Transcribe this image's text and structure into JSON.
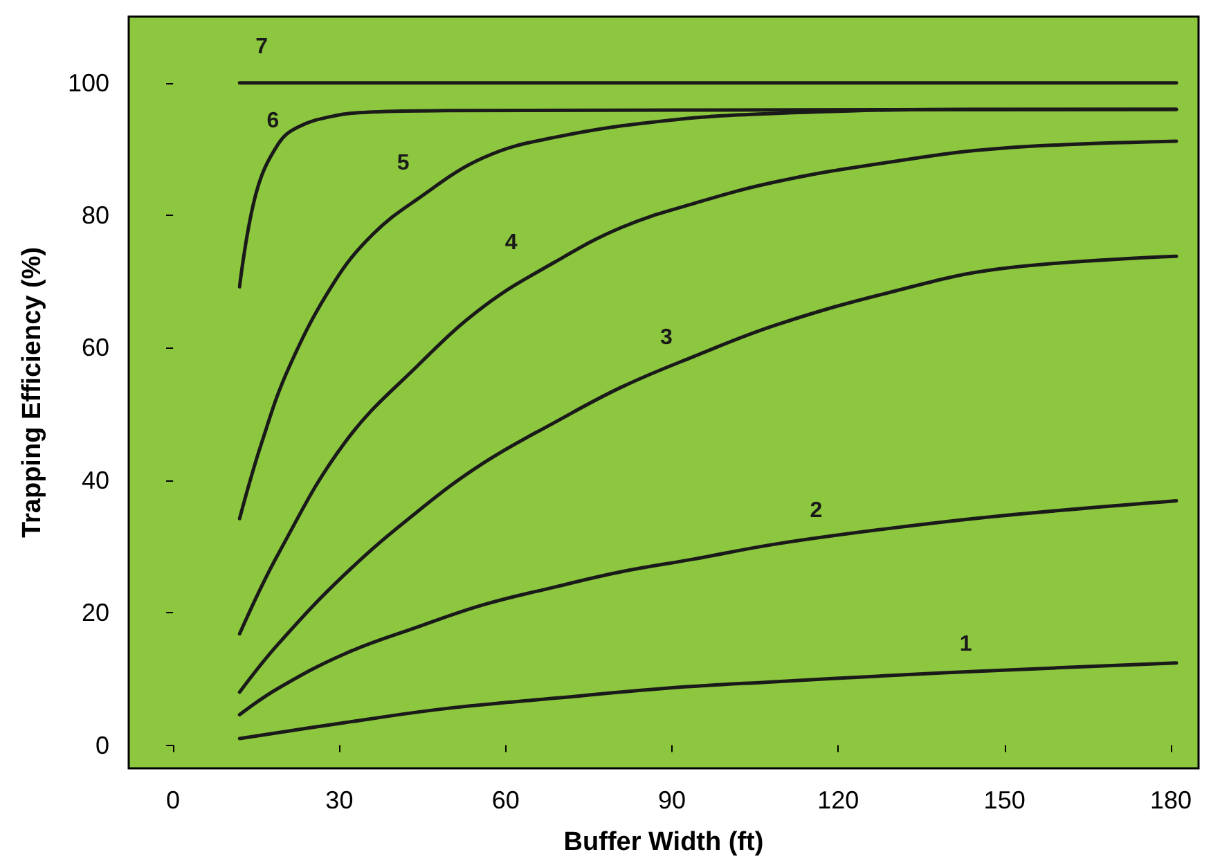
{
  "chart_data": {
    "type": "line",
    "xlabel": "Buffer Width (ft)",
    "ylabel": "Trapping Efficiency (%)",
    "xlim": [
      -8,
      185
    ],
    "ylim": [
      -3.5,
      110
    ],
    "xticks": [
      0,
      30,
      60,
      90,
      120,
      150,
      180
    ],
    "yticks": [
      0,
      20,
      40,
      60,
      80,
      100
    ],
    "grid": false,
    "marker": "none",
    "line_style": "solid",
    "series": [
      {
        "name": "1",
        "color": "#1a1a1a",
        "x": [
          12,
          31,
          49,
          69,
          89,
          109,
          129,
          149,
          181
        ],
        "values": [
          1,
          3.4,
          5.5,
          7.1,
          8.6,
          9.6,
          10.5,
          11.3,
          12.4
        ]
      },
      {
        "name": "2",
        "color": "#1a1a1a",
        "x": [
          12,
          19,
          31,
          44,
          56,
          69,
          81,
          94,
          109,
          129,
          149,
          181
        ],
        "values": [
          4.6,
          8.6,
          13.8,
          17.8,
          21.2,
          23.9,
          26.2,
          28.1,
          30.4,
          32.7,
          34.6,
          36.9
        ]
      },
      {
        "name": "3",
        "color": "#1a1a1a",
        "x": [
          12,
          19,
          31,
          44,
          56,
          69,
          81,
          94,
          109,
          129,
          149,
          181
        ],
        "values": [
          8,
          15.3,
          25.8,
          35.2,
          42.6,
          48.8,
          54.1,
          58.7,
          63.5,
          68.3,
          71.9,
          73.8
        ]
      },
      {
        "name": "4",
        "color": "#1a1a1a",
        "x": [
          12,
          19,
          31,
          44,
          56,
          69,
          81,
          94,
          109,
          129,
          149,
          181
        ],
        "values": [
          16.8,
          28.9,
          45.7,
          57.2,
          66.2,
          73,
          78.2,
          81.8,
          85.1,
          88,
          90.1,
          91.2
        ]
      },
      {
        "name": "5",
        "color": "#1a1a1a",
        "x": [
          12,
          16,
          21,
          29,
          36,
          44,
          56,
          69,
          89,
          109,
          144,
          181
        ],
        "values": [
          34.2,
          45.7,
          57.2,
          69.8,
          77.1,
          82.4,
          88.7,
          91.8,
          94.3,
          95.4,
          96,
          96
        ]
      },
      {
        "name": "6",
        "color": "#1a1a1a",
        "x": [
          12,
          15,
          19,
          22.5,
          29,
          36,
          49,
          181
        ],
        "values": [
          69.2,
          83.4,
          90.8,
          93.3,
          95,
          95.6,
          95.8,
          96
        ]
      },
      {
        "name": "7",
        "color": "#1a1a1a",
        "x": [
          12,
          181
        ],
        "values": [
          100,
          100
        ]
      }
    ]
  }
}
